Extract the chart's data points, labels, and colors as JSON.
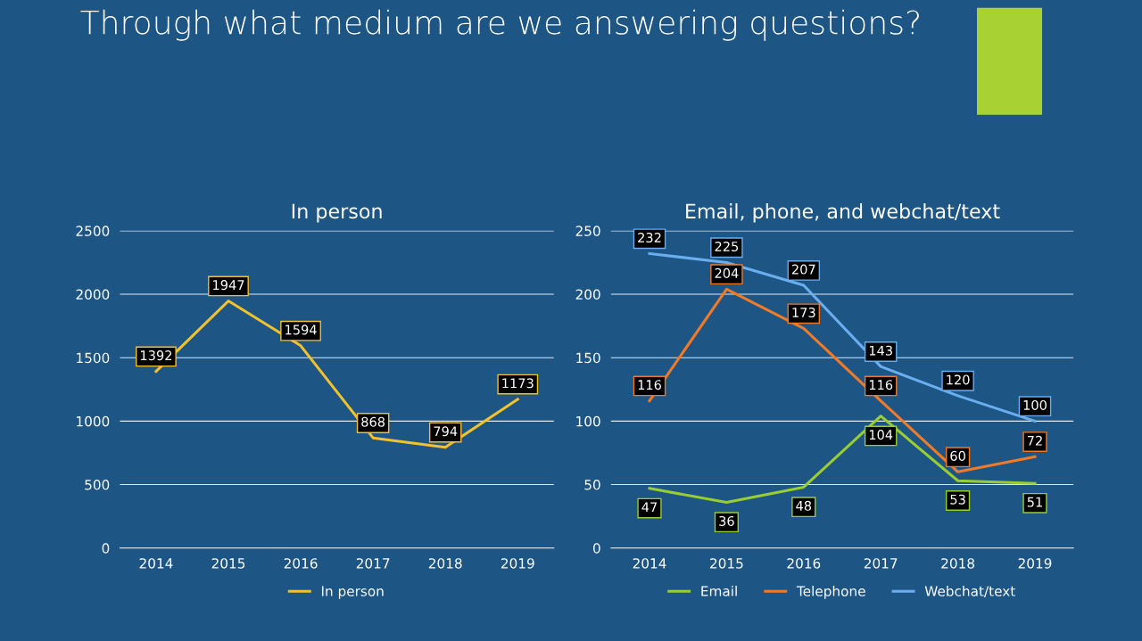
{
  "chart_data": [
    {
      "type": "line",
      "title": "In person",
      "annotations": [
        "Through what medium are we answering questions?"
      ],
      "categories": [
        "2014",
        "2015",
        "2016",
        "2017",
        "2018",
        "2019"
      ],
      "series": [
        {
          "name": "In person",
          "color": "#f2c12e",
          "values": [
            1392,
            1947,
            1594,
            868,
            794,
            1173
          ]
        }
      ],
      "ylim": [
        0,
        2500
      ],
      "yticks": [
        0,
        500,
        1000,
        1500,
        2000,
        2500
      ],
      "grid": "y",
      "legend": "bottom",
      "data_labels": true
    },
    {
      "type": "line",
      "title": "Email, phone, and webchat/text",
      "categories": [
        "2014",
        "2015",
        "2016",
        "2017",
        "2018",
        "2019"
      ],
      "series": [
        {
          "name": "Email",
          "color": "#9acd32",
          "values": [
            47,
            36,
            48,
            104,
            53,
            51
          ]
        },
        {
          "name": "Telephone",
          "color": "#f07a28",
          "values": [
            116,
            204,
            173,
            116,
            60,
            72
          ]
        },
        {
          "name": "Webchat/text",
          "color": "#6aaef0",
          "values": [
            232,
            225,
            207,
            143,
            120,
            100
          ]
        }
      ],
      "ylim": [
        0,
        250
      ],
      "yticks": [
        0,
        50,
        100,
        150,
        200,
        250
      ],
      "grid": "y",
      "legend": "bottom",
      "data_labels": true
    }
  ]
}
